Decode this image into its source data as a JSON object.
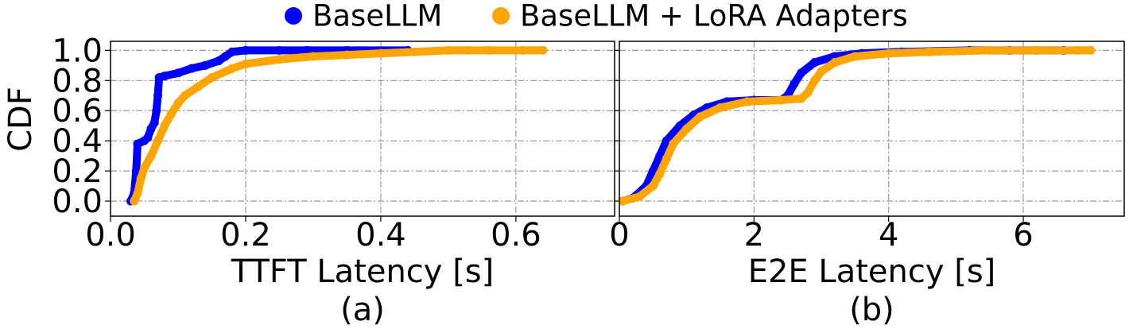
{
  "chart_data": [
    {
      "type": "scatter",
      "xlabel": "TTFT Latency [s]",
      "ylabel": "CDF",
      "caption": "(a)",
      "xlim": [
        0,
        0.746
      ],
      "ylim": [
        -0.1,
        1.06
      ],
      "xticks": [
        {
          "value": 0,
          "label": "0.0"
        },
        0.2,
        0.4,
        0.6
      ],
      "yticks": [
        {
          "value": 0,
          "label": "0.0"
        },
        0.2,
        0.4,
        0.6,
        0.8,
        {
          "value": 1,
          "label": "1.0"
        }
      ],
      "grid": true,
      "legend": "top",
      "series": [
        {
          "name": "BaseLLM",
          "color": "#0000ff",
          "x": [
            0.03,
            0.035,
            0.038,
            0.04,
            0.05,
            0.055,
            0.06,
            0.065,
            0.068,
            0.07,
            0.072,
            0.08,
            0.1,
            0.12,
            0.14,
            0.16,
            0.17,
            0.18,
            0.2,
            0.25,
            0.29,
            0.35,
            0.44
          ],
          "values": [
            0,
            0.05,
            0.2,
            0.38,
            0.4,
            0.42,
            0.48,
            0.52,
            0.6,
            0.7,
            0.82,
            0.83,
            0.85,
            0.88,
            0.9,
            0.93,
            0.96,
            0.99,
            1.0,
            1.0,
            1.0,
            1.0,
            1.0
          ]
        },
        {
          "name": "BaseLLM + LoRA Adapters",
          "color": "#ffa500",
          "x": [
            0.035,
            0.04,
            0.045,
            0.05,
            0.06,
            0.07,
            0.08,
            0.09,
            0.1,
            0.11,
            0.13,
            0.15,
            0.18,
            0.2,
            0.25,
            0.3,
            0.35,
            0.4,
            0.45,
            0.5,
            0.53,
            0.56,
            0.61,
            0.64
          ],
          "values": [
            0,
            0.05,
            0.15,
            0.22,
            0.3,
            0.4,
            0.5,
            0.58,
            0.65,
            0.7,
            0.76,
            0.82,
            0.88,
            0.91,
            0.94,
            0.96,
            0.97,
            0.98,
            0.99,
            1.0,
            1.0,
            1.0,
            1.0,
            1.0
          ]
        }
      ]
    },
    {
      "type": "scatter",
      "xlabel": "E2E Latency [s]",
      "caption": "(b)",
      "xlim": [
        0,
        7.5
      ],
      "ylim": [
        -0.1,
        1.06
      ],
      "xticks": [
        0,
        2,
        4,
        6
      ],
      "yticks": [
        0,
        0.2,
        0.4,
        0.6,
        0.8,
        1
      ],
      "grid": true,
      "series": [
        {
          "name": "BaseLLM",
          "color": "#0000ff",
          "x": [
            0.05,
            0.2,
            0.4,
            0.5,
            0.6,
            0.7,
            0.9,
            1.1,
            1.3,
            1.6,
            2.0,
            2.4,
            2.5,
            2.6,
            2.7,
            2.9,
            3.2,
            3.6,
            4.2,
            5.2,
            5.8,
            6.2,
            6.6
          ],
          "values": [
            0,
            0.02,
            0.1,
            0.2,
            0.3,
            0.4,
            0.5,
            0.57,
            0.62,
            0.66,
            0.67,
            0.67,
            0.7,
            0.78,
            0.85,
            0.92,
            0.96,
            0.98,
            0.99,
            1.0,
            1.0,
            1.0,
            1.0
          ]
        },
        {
          "name": "BaseLLM + LoRA Adapters",
          "color": "#ffa500",
          "x": [
            0.05,
            0.3,
            0.5,
            0.6,
            0.7,
            0.8,
            1.0,
            1.2,
            1.5,
            1.9,
            2.4,
            2.7,
            2.8,
            2.9,
            3.0,
            3.2,
            3.5,
            4.0,
            4.6,
            5.5,
            6.2,
            6.8,
            7.0
          ],
          "values": [
            0,
            0.03,
            0.1,
            0.18,
            0.28,
            0.38,
            0.48,
            0.56,
            0.62,
            0.66,
            0.67,
            0.68,
            0.72,
            0.8,
            0.86,
            0.92,
            0.96,
            0.98,
            0.99,
            1.0,
            1.0,
            1.0,
            1.0
          ]
        }
      ]
    }
  ]
}
